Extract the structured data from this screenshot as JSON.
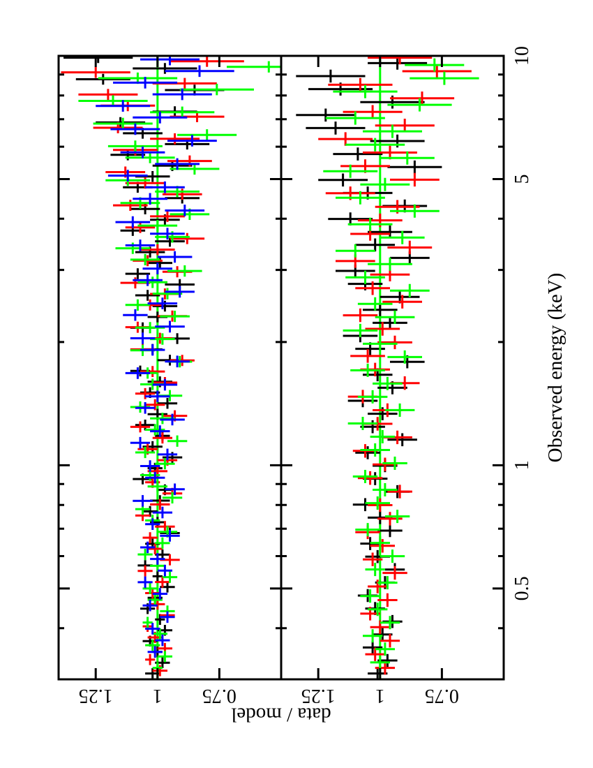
{
  "page": {
    "background": "#ffffff"
  },
  "chart_data": {
    "type": "scatter",
    "subtype": "x/y error-bar crosses (X-ray spectral ratio plot, landscape rotated 90deg CCW)",
    "title": "",
    "xlabel": "Observed energy (keV)",
    "ylabel": "data / model",
    "x_scale": "log",
    "xlim": [
      0.3,
      10
    ],
    "x_major_ticks": [
      0.5,
      1,
      5,
      10
    ],
    "x_major_labels": [
      "0.5",
      "1",
      "5",
      "10"
    ],
    "x_minor_ticks": [
      0.4,
      0.6,
      0.7,
      0.8,
      0.9,
      2,
      3,
      4,
      6,
      7,
      8,
      9
    ],
    "colors": {
      "frame": "#000000",
      "reference_line": "#00ff00",
      "dataset1": "#000000",
      "dataset2": "#ff0000",
      "dataset3": "#00ff00",
      "dataset4": "#0000ff"
    },
    "panels": [
      {
        "name": "upper-ratio-panel",
        "ylim": [
          0.5,
          1.4
        ],
        "y_major_ticks": [
          1.25,
          1.0,
          0.75
        ],
        "y_major_labels": [
          "1.25",
          "1",
          "0.75"
        ],
        "reference_line_y": 1.0,
        "series": [
          {
            "name": "dataset-1",
            "color": "#000000",
            "e_min": 0.31,
            "e_max": 9.9,
            "ratios": [
              1.02,
              0.98,
              1.0,
              1.03,
              0.97,
              0.99,
              1.04,
              1.01,
              0.96,
              1.0,
              1.05,
              0.98,
              1.02,
              0.95,
              1.0,
              1.03,
              0.99,
              0.97,
              1.06,
              1.01,
              0.94,
              1.02,
              0.98,
              1.05,
              1.0,
              0.96,
              1.03,
              0.99,
              1.07,
              0.95,
              1.02,
              0.92,
              1.06,
              1.0,
              0.97,
              1.04,
              0.91,
              1.08,
              0.99,
              1.03,
              0.95,
              1.1,
              0.97,
              1.05,
              0.9,
              1.08,
              1.02,
              0.94,
              1.12,
              0.88,
              1.06,
              1.15,
              0.93,
              1.18,
              0.85,
              1.22,
              0.97,
              1.24
            ],
            "errors": [
              0.03,
              0.03,
              0.02,
              0.03,
              0.03,
              0.02,
              0.03,
              0.03,
              0.03,
              0.02,
              0.03,
              0.03,
              0.03,
              0.04,
              0.03,
              0.03,
              0.04,
              0.03,
              0.04,
              0.03,
              0.04,
              0.04,
              0.03,
              0.04,
              0.04,
              0.04,
              0.04,
              0.05,
              0.04,
              0.05,
              0.04,
              0.05,
              0.05,
              0.04,
              0.05,
              0.05,
              0.06,
              0.05,
              0.05,
              0.06,
              0.06,
              0.05,
              0.06,
              0.06,
              0.07,
              0.06,
              0.07,
              0.08,
              0.07,
              0.09,
              0.08,
              0.1,
              0.09,
              0.11,
              0.12,
              0.11,
              0.13,
              0.14
            ]
          },
          {
            "name": "dataset-2",
            "color": "#ff0000",
            "e_min": 0.315,
            "e_max": 9.7,
            "ratios": [
              0.99,
              1.03,
              0.97,
              1.01,
              1.04,
              0.96,
              1.0,
              1.02,
              0.98,
              1.05,
              0.95,
              1.01,
              1.03,
              0.97,
              1.06,
              0.99,
              0.94,
              1.02,
              1.0,
              0.96,
              1.04,
              0.98,
              1.07,
              0.93,
              1.01,
              1.05,
              0.97,
              1.02,
              0.9,
              1.06,
              0.99,
              1.08,
              0.94,
              1.03,
              0.97,
              1.09,
              0.92,
              1.04,
              1.0,
              0.88,
              1.07,
              0.96,
              1.11,
              0.9,
              1.05,
              1.13,
              0.87,
              1.09,
              0.93,
              1.16,
              0.84,
              1.12,
              1.2,
              0.89,
              1.25,
              0.8
            ],
            "errors": [
              0.03,
              0.02,
              0.03,
              0.03,
              0.02,
              0.03,
              0.03,
              0.03,
              0.03,
              0.03,
              0.04,
              0.03,
              0.03,
              0.04,
              0.03,
              0.04,
              0.04,
              0.03,
              0.04,
              0.04,
              0.04,
              0.04,
              0.04,
              0.05,
              0.04,
              0.04,
              0.05,
              0.05,
              0.05,
              0.05,
              0.05,
              0.05,
              0.06,
              0.05,
              0.06,
              0.06,
              0.06,
              0.06,
              0.07,
              0.07,
              0.06,
              0.07,
              0.07,
              0.08,
              0.08,
              0.08,
              0.09,
              0.09,
              0.1,
              0.1,
              0.11,
              0.11,
              0.12,
              0.13,
              0.14,
              0.15
            ]
          },
          {
            "name": "dataset-3",
            "color": "#00ff00",
            "e_min": 0.32,
            "e_max": 9.4,
            "ratios": [
              1.0,
              0.97,
              1.02,
              0.99,
              1.04,
              0.96,
              1.01,
              1.03,
              0.95,
              1.0,
              1.05,
              0.98,
              0.96,
              1.02,
              1.06,
              0.94,
              1.0,
              1.03,
              0.97,
              1.05,
              0.92,
              1.01,
              0.98,
              1.07,
              0.95,
              1.02,
              1.04,
              0.91,
              1.06,
              0.98,
              1.03,
              0.93,
              1.08,
              0.96,
              1.02,
              0.89,
              1.05,
              1.1,
              0.94,
              1.0,
              0.87,
              1.07,
              0.92,
              1.12,
              0.85,
              1.03,
              1.09,
              0.8,
              1.14,
              0.9,
              1.18,
              0.76,
              1.08,
              0.55
            ],
            "errors": [
              0.02,
              0.03,
              0.03,
              0.03,
              0.02,
              0.03,
              0.03,
              0.03,
              0.03,
              0.03,
              0.03,
              0.03,
              0.04,
              0.03,
              0.03,
              0.04,
              0.04,
              0.04,
              0.04,
              0.04,
              0.04,
              0.04,
              0.05,
              0.04,
              0.05,
              0.05,
              0.04,
              0.05,
              0.05,
              0.05,
              0.06,
              0.06,
              0.05,
              0.06,
              0.06,
              0.07,
              0.06,
              0.07,
              0.07,
              0.08,
              0.08,
              0.08,
              0.09,
              0.09,
              0.1,
              0.1,
              0.11,
              0.12,
              0.12,
              0.13,
              0.14,
              0.15,
              0.16,
              0.17
            ]
          },
          {
            "name": "dataset-4",
            "color": "#0000ff",
            "e_min": 0.35,
            "e_max": 9.8,
            "ratios": [
              1.01,
              0.98,
              1.02,
              0.96,
              1.03,
              0.99,
              1.05,
              0.97,
              1.0,
              1.04,
              0.95,
              1.02,
              0.98,
              1.06,
              0.93,
              1.01,
              1.03,
              0.96,
              1.07,
              0.99,
              0.94,
              1.05,
              1.0,
              0.97,
              1.08,
              0.92,
              1.02,
              1.06,
              0.95,
              1.09,
              0.98,
              0.91,
              1.04,
              1.0,
              0.93,
              1.07,
              0.96,
              1.1,
              0.89,
              1.03,
              0.97,
              1.12,
              0.92,
              1.06,
              0.86,
              1.09,
              0.99,
              1.14,
              0.9,
              1.05,
              0.83,
              0.95
            ],
            "errors": [
              0.03,
              0.03,
              0.03,
              0.03,
              0.03,
              0.03,
              0.03,
              0.03,
              0.03,
              0.03,
              0.04,
              0.03,
              0.04,
              0.04,
              0.04,
              0.04,
              0.04,
              0.04,
              0.04,
              0.04,
              0.05,
              0.04,
              0.05,
              0.05,
              0.05,
              0.05,
              0.05,
              0.05,
              0.06,
              0.05,
              0.06,
              0.06,
              0.06,
              0.06,
              0.07,
              0.06,
              0.07,
              0.07,
              0.08,
              0.07,
              0.08,
              0.08,
              0.09,
              0.09,
              0.1,
              0.1,
              0.11,
              0.11,
              0.12,
              0.13,
              0.14,
              0.12
            ]
          }
        ]
      },
      {
        "name": "lower-ratio-panel",
        "ylim": [
          0.5,
          1.4
        ],
        "y_major_ticks": [
          1.25,
          1.0,
          0.75
        ],
        "y_major_labels": [
          "1.25",
          "1",
          "0.75"
        ],
        "reference_line_y": 1.0,
        "series": [
          {
            "name": "dataset-1",
            "color": "#000000",
            "e_min": 0.31,
            "e_max": 9.6,
            "ratios": [
              1.01,
              0.97,
              1.03,
              0.99,
              0.95,
              1.02,
              1.05,
              0.98,
              0.94,
              1.01,
              1.04,
              0.96,
              1.0,
              1.06,
              0.93,
              1.02,
              0.98,
              1.05,
              0.91,
              1.03,
              0.99,
              1.07,
              0.95,
              1.01,
              0.89,
              1.04,
              1.08,
              0.96,
              1.0,
              0.92,
              1.06,
              1.1,
              0.88,
              1.02,
              0.96,
              1.12,
              0.9,
              1.05,
              1.15,
              0.86,
              1.09,
              0.93,
              1.18,
              1.22,
              0.95,
              1.16,
              1.2,
              0.93
            ],
            "errors": [
              0.04,
              0.04,
              0.04,
              0.04,
              0.04,
              0.04,
              0.04,
              0.04,
              0.04,
              0.05,
              0.04,
              0.05,
              0.05,
              0.05,
              0.05,
              0.05,
              0.05,
              0.05,
              0.06,
              0.05,
              0.06,
              0.06,
              0.06,
              0.06,
              0.07,
              0.06,
              0.07,
              0.07,
              0.07,
              0.08,
              0.07,
              0.08,
              0.08,
              0.08,
              0.09,
              0.09,
              0.09,
              0.1,
              0.1,
              0.11,
              0.1,
              0.11,
              0.12,
              0.12,
              0.13,
              0.13,
              0.14,
              0.12
            ]
          },
          {
            "name": "dataset-2",
            "color": "#ff0000",
            "e_min": 0.32,
            "e_max": 9.9,
            "ratios": [
              0.98,
              1.02,
              0.96,
              1.0,
              1.04,
              0.97,
              1.01,
              0.94,
              1.03,
              0.99,
              1.05,
              0.96,
              1.0,
              0.92,
              1.04,
              0.98,
              1.06,
              0.93,
              1.01,
              0.97,
              1.07,
              0.9,
              1.02,
              1.05,
              0.94,
              0.99,
              1.08,
              0.91,
              1.03,
              0.96,
              1.1,
              0.88,
              1.04,
              1.0,
              0.93,
              1.12,
              0.86,
              1.06,
              0.96,
              1.14,
              0.9,
              1.03,
              0.83,
              1.08,
              0.77,
              0.92
            ],
            "errors": [
              0.04,
              0.04,
              0.04,
              0.04,
              0.04,
              0.04,
              0.04,
              0.05,
              0.04,
              0.05,
              0.05,
              0.05,
              0.05,
              0.05,
              0.05,
              0.05,
              0.05,
              0.06,
              0.06,
              0.06,
              0.06,
              0.06,
              0.06,
              0.07,
              0.07,
              0.07,
              0.07,
              0.08,
              0.07,
              0.08,
              0.08,
              0.09,
              0.08,
              0.09,
              0.09,
              0.1,
              0.1,
              0.1,
              0.11,
              0.11,
              0.12,
              0.12,
              0.13,
              0.13,
              0.14,
              0.13
            ]
          },
          {
            "name": "dataset-3",
            "color": "#00ff00",
            "e_min": 0.33,
            "e_max": 9.5,
            "ratios": [
              1.0,
              0.98,
              1.03,
              0.96,
              1.01,
              1.04,
              0.97,
              1.02,
              0.95,
              1.0,
              1.05,
              0.93,
              1.01,
              0.98,
              1.06,
              0.94,
              1.02,
              0.99,
              1.07,
              0.92,
              1.03,
              0.97,
              1.05,
              0.9,
              1.0,
              1.08,
              0.94,
              1.02,
              0.88,
              1.06,
              0.96,
              1.1,
              0.91,
              1.04,
              0.86,
              1.08,
              0.98,
              1.12,
              0.89,
              1.02,
              0.95,
              1.1,
              0.84,
              1.06,
              0.74,
              0.78
            ],
            "errors": [
              0.04,
              0.04,
              0.04,
              0.04,
              0.04,
              0.04,
              0.04,
              0.04,
              0.05,
              0.04,
              0.05,
              0.05,
              0.05,
              0.05,
              0.05,
              0.05,
              0.06,
              0.05,
              0.06,
              0.06,
              0.06,
              0.06,
              0.07,
              0.07,
              0.07,
              0.07,
              0.08,
              0.07,
              0.08,
              0.08,
              0.09,
              0.08,
              0.09,
              0.09,
              0.1,
              0.1,
              0.1,
              0.11,
              0.11,
              0.12,
              0.12,
              0.12,
              0.13,
              0.13,
              0.14,
              0.12
            ]
          }
        ]
      }
    ]
  }
}
